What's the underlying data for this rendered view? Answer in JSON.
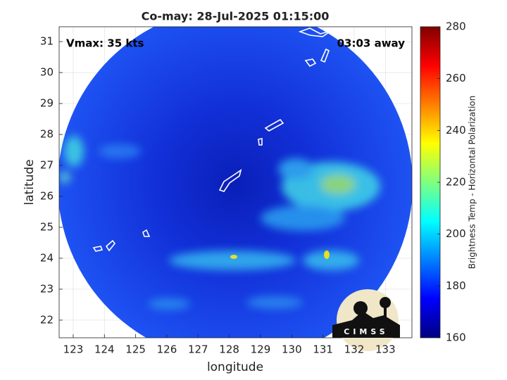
{
  "chart_data": {
    "type": "map",
    "title": "Co-may: 28-Jul-2025 01:15:00",
    "annotations": [
      "Vmax: 35 kts",
      "03:03 away"
    ],
    "xlabel": "longitude",
    "ylabel": "latitude",
    "xlim": [
      122.55,
      133.85
    ],
    "ylim": [
      21.43,
      31.48
    ],
    "xticks": [
      123,
      124,
      125,
      126,
      127,
      128,
      129,
      130,
      131,
      132,
      133
    ],
    "yticks": [
      22,
      23,
      24,
      25,
      26,
      27,
      28,
      29,
      30,
      31
    ],
    "grid": true,
    "colorbar": {
      "label": "Brightness Temp - Horizontal Polarization",
      "lim": [
        160,
        280
      ],
      "ticks": [
        160,
        180,
        200,
        220,
        240,
        260,
        280
      ],
      "colormap": "jet"
    },
    "logo": "CIMSS"
  }
}
